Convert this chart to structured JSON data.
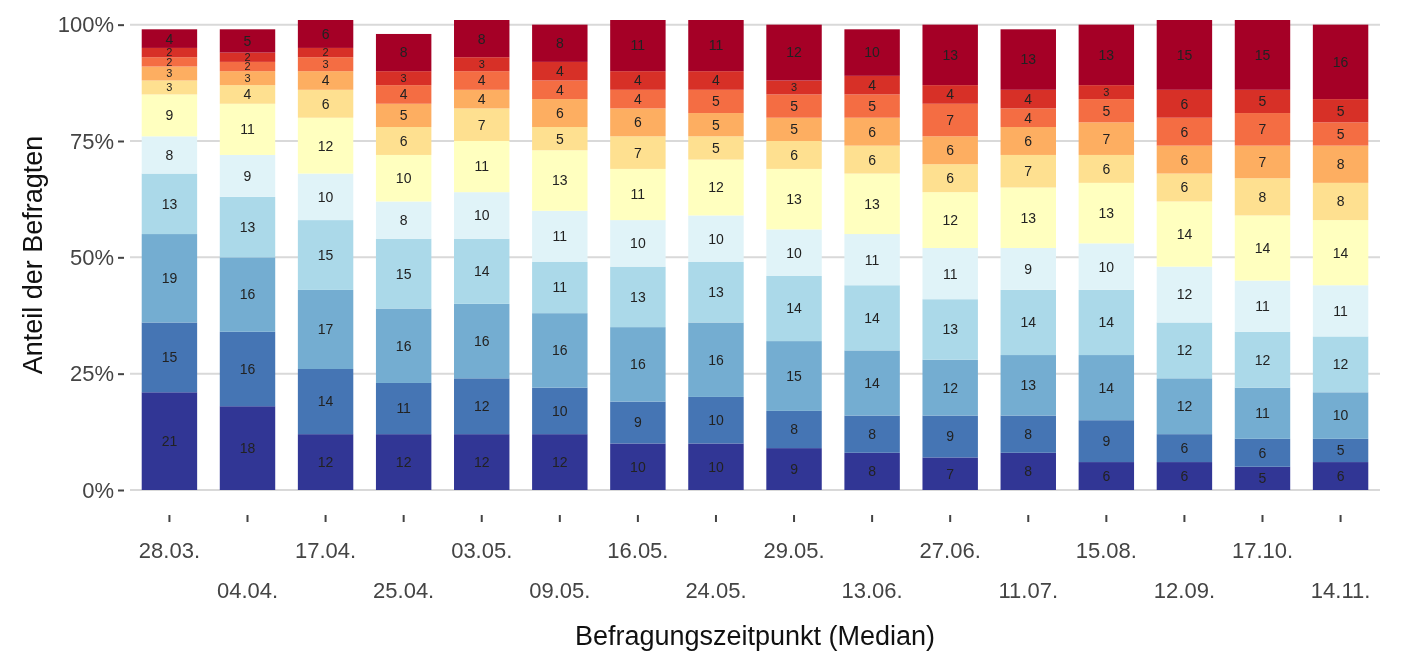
{
  "chart_data": {
    "type": "bar",
    "stacked": true,
    "data_labels": true,
    "grid": "y",
    "xlabel": "Befragungszeitpunkt (Median)",
    "ylabel": "Anteil der Befragten",
    "categories": [
      "28.03.",
      "04.04.",
      "17.04.",
      "25.04.",
      "03.05.",
      "09.05.",
      "16.05.",
      "24.05.",
      "29.05.",
      "13.06.",
      "27.06.",
      "11.07.",
      "15.08.",
      "12.09.",
      "17.10.",
      "14.11."
    ],
    "ylim": [
      0,
      101
    ],
    "yticks": [
      {
        "value": 0,
        "label": "0%"
      },
      {
        "value": 25,
        "label": "25%"
      },
      {
        "value": 50,
        "label": "50%"
      },
      {
        "value": 75,
        "label": "75%"
      },
      {
        "value": 100,
        "label": "100%"
      }
    ],
    "series": [
      {
        "color": "#313695",
        "values": [
          21,
          18,
          12,
          12,
          12,
          12,
          10,
          10,
          9,
          8,
          7,
          8,
          6,
          6,
          5,
          6
        ]
      },
      {
        "color": "#4575b4",
        "values": [
          15,
          16,
          14,
          11,
          12,
          10,
          9,
          10,
          8,
          8,
          9,
          8,
          9,
          6,
          6,
          5
        ]
      },
      {
        "color": "#74add1",
        "values": [
          19,
          16,
          17,
          16,
          16,
          16,
          16,
          16,
          15,
          14,
          12,
          13,
          14,
          12,
          11,
          10
        ]
      },
      {
        "color": "#abd9e9",
        "values": [
          13,
          13,
          15,
          15,
          14,
          11,
          13,
          13,
          14,
          14,
          13,
          14,
          14,
          12,
          12,
          12
        ]
      },
      {
        "color": "#e0f3f8",
        "values": [
          8,
          9,
          10,
          8,
          10,
          11,
          10,
          10,
          10,
          11,
          11,
          9,
          10,
          12,
          11,
          11
        ]
      },
      {
        "color": "#ffffbf",
        "values": [
          9,
          11,
          12,
          10,
          11,
          13,
          11,
          12,
          13,
          13,
          12,
          13,
          13,
          14,
          14,
          14
        ]
      },
      {
        "color": "#fee090",
        "values": [
          3,
          4,
          6,
          6,
          7,
          5,
          7,
          5,
          6,
          6,
          6,
          7,
          6,
          6,
          8,
          8
        ]
      },
      {
        "color": "#fdae61",
        "values": [
          3,
          3,
          4,
          5,
          4,
          6,
          6,
          5,
          5,
          6,
          6,
          6,
          7,
          6,
          7,
          8
        ]
      },
      {
        "color": "#f46d43",
        "values": [
          2,
          2,
          3,
          4,
          4,
          4,
          4,
          5,
          5,
          5,
          7,
          4,
          5,
          6,
          7,
          5
        ]
      },
      {
        "color": "#d73027",
        "values": [
          2,
          2,
          2,
          3,
          3,
          4,
          4,
          4,
          3,
          4,
          4,
          4,
          3,
          6,
          5,
          5
        ]
      },
      {
        "color": "#a50026",
        "values": [
          4,
          5,
          6,
          8,
          8,
          8,
          11,
          11,
          12,
          10,
          13,
          13,
          13,
          15,
          15,
          16
        ]
      }
    ]
  }
}
